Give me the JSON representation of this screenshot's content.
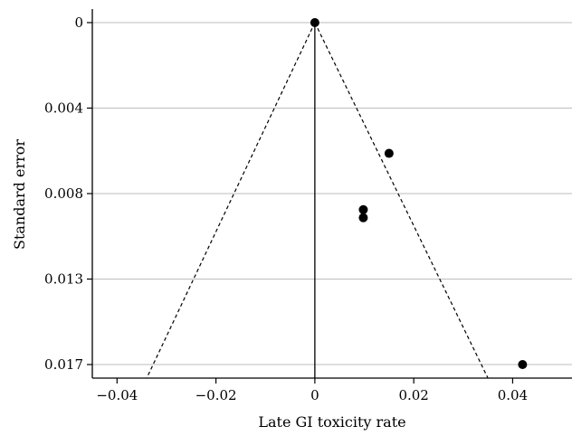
{
  "chart_data": {
    "type": "scatter",
    "subtype": "funnel-plot",
    "title": "",
    "xlabel": "Late GI toxicity rate",
    "ylabel": "Standard error",
    "xlim": [
      -0.045,
      0.052
    ],
    "ylim": [
      0.0,
      0.0179
    ],
    "y_inverted": true,
    "x_ticks": [
      -0.04,
      -0.02,
      0,
      0.02,
      0.04
    ],
    "x_tick_labels": [
      "−0.04",
      "−0.02",
      "0",
      "0.02",
      "0.04"
    ],
    "y_ticks": [
      0,
      0.00425,
      0.0085,
      0.01275,
      0.017
    ],
    "y_tick_labels": [
      "0",
      "0.004",
      "0.008",
      "0.013",
      "0.017"
    ],
    "grid": "horizontal",
    "points": [
      {
        "x": 0.0,
        "y": 0.0
      },
      {
        "x": 0.015,
        "y": 0.0065
      },
      {
        "x": 0.0098,
        "y": 0.0093
      },
      {
        "x": 0.0098,
        "y": 0.0097
      },
      {
        "x": 0.042,
        "y": 0.017
      }
    ],
    "reference_line": {
      "x": 0
    },
    "funnel": {
      "apex": [
        0,
        0
      ],
      "left_base": [
        -0.034,
        0.0179
      ],
      "right_base": [
        0.035,
        0.0179
      ]
    }
  }
}
